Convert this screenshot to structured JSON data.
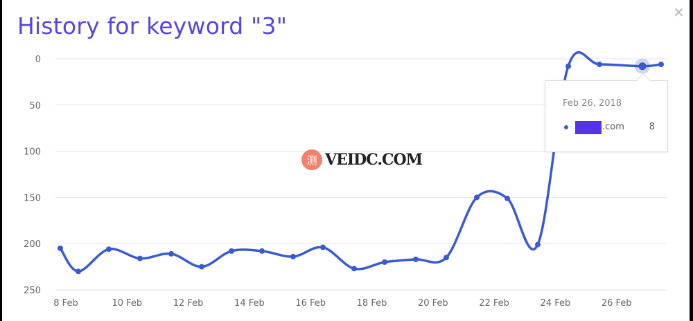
{
  "modal": {
    "title": "History for keyword \"3\"",
    "close_icon": "close-icon"
  },
  "colors": {
    "title": "#5645e6",
    "line": "#3a5bd0",
    "grid": "#e6e6e6",
    "swatch": "#5633ea"
  },
  "watermark": {
    "logo_glyph": "测",
    "text": "VEIDC.COM"
  },
  "tooltip": {
    "date": "Feb 26, 2018",
    "domain_suffix": ".com",
    "value": "8"
  },
  "chart_data": {
    "type": "line",
    "title": "History for keyword \"3\"",
    "xlabel": "",
    "ylabel": "",
    "y_reversed": true,
    "ylim": [
      0,
      250
    ],
    "yticks": [
      "0",
      "50",
      "100",
      "150",
      "200",
      "250"
    ],
    "xticks": [
      "8 Feb",
      "10 Feb",
      "12 Feb",
      "14 Feb",
      "16 Feb",
      "18 Feb",
      "20 Feb",
      "22 Feb",
      "24 Feb",
      "26 Feb"
    ],
    "grid": true,
    "x": [
      "2018-02-07",
      "2018-02-08",
      "2018-02-09",
      "2018-02-10",
      "2018-02-11",
      "2018-02-12",
      "2018-02-13",
      "2018-02-14",
      "2018-02-15",
      "2018-02-16",
      "2018-02-17",
      "2018-02-18",
      "2018-02-19",
      "2018-02-20",
      "2018-02-21",
      "2018-02-22",
      "2018-02-23",
      "2018-02-24",
      "2018-02-25",
      "2018-02-26",
      "2018-02-27"
    ],
    "values": [
      205,
      230,
      206,
      216,
      211,
      225,
      208,
      208,
      214,
      204,
      227,
      220,
      217,
      215,
      150,
      151,
      201,
      8,
      6,
      8,
      6
    ],
    "highlighted_index": 19
  }
}
